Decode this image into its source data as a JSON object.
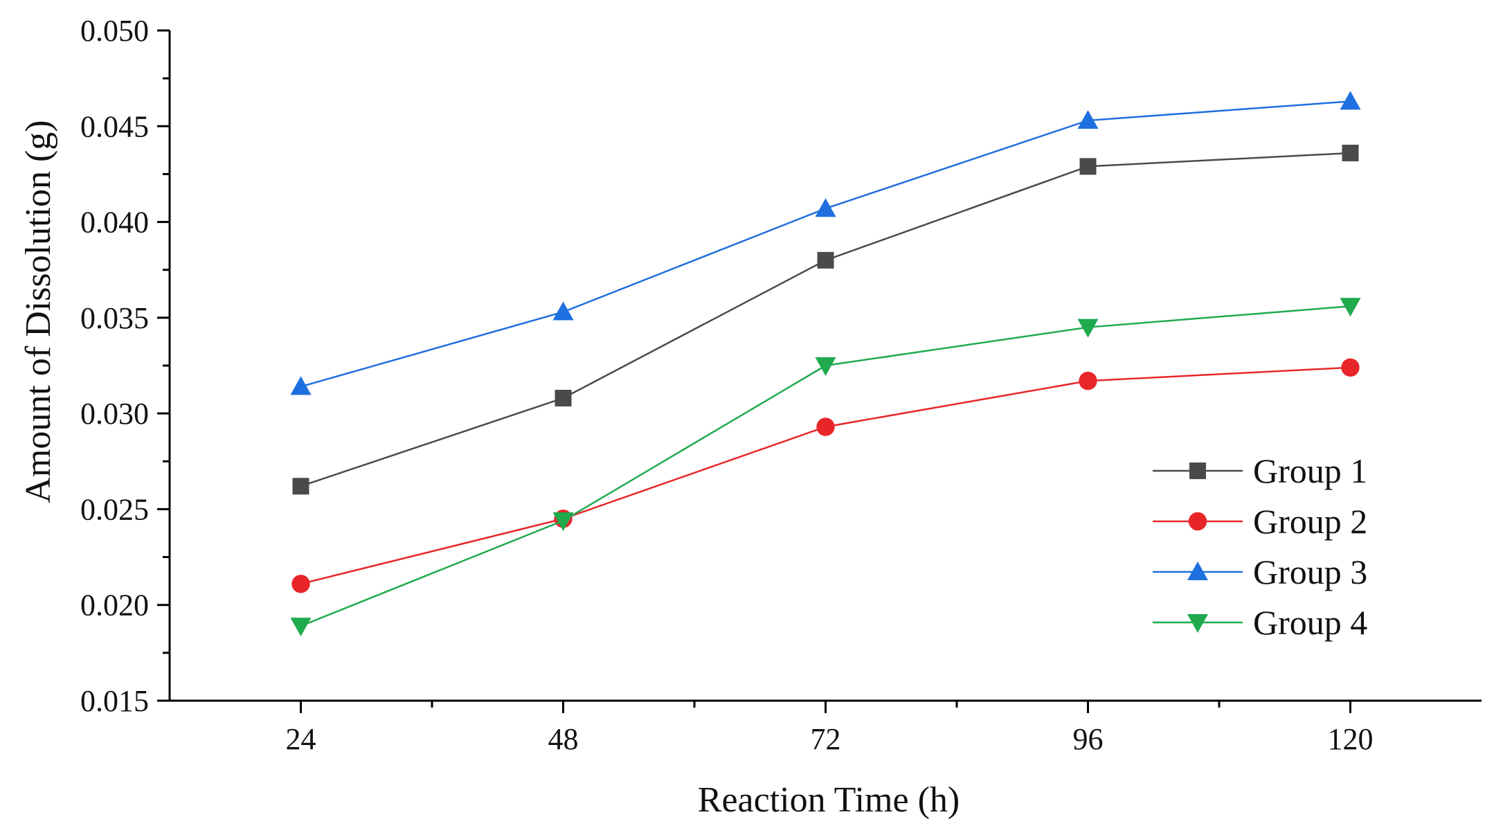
{
  "chart_data": {
    "type": "line",
    "title": "",
    "xlabel": "Reaction Time (h)",
    "ylabel": "Amount of Dissolution (g)",
    "x": [
      24,
      48,
      72,
      96,
      120
    ],
    "x_ticks": [
      "24",
      "48",
      "72",
      "96",
      "120"
    ],
    "xlim": [
      12,
      132
    ],
    "ylim": [
      0.015,
      0.05
    ],
    "y_ticks": [
      "0.015",
      "0.020",
      "0.025",
      "0.030",
      "0.035",
      "0.040",
      "0.045",
      "0.050"
    ],
    "y_tick_values": [
      0.015,
      0.02,
      0.025,
      0.03,
      0.035,
      0.04,
      0.045,
      0.05
    ],
    "grid": false,
    "legend_position": "right",
    "series": [
      {
        "name": "Group 1",
        "color": "#4a4a4a",
        "marker": "square",
        "values": [
          0.0262,
          0.0308,
          0.038,
          0.0429,
          0.0436
        ]
      },
      {
        "name": "Group 2",
        "color": "#e8262a",
        "marker": "circle",
        "values": [
          0.0211,
          0.0245,
          0.0293,
          0.0317,
          0.0324
        ]
      },
      {
        "name": "Group 3",
        "color": "#1f6fe0",
        "marker": "triangle-up",
        "values": [
          0.0314,
          0.0353,
          0.0407,
          0.0453,
          0.0463
        ]
      },
      {
        "name": "Group 4",
        "color": "#1faa4e",
        "marker": "triangle-down",
        "values": [
          0.0189,
          0.0244,
          0.0325,
          0.0345,
          0.0356
        ]
      }
    ]
  }
}
